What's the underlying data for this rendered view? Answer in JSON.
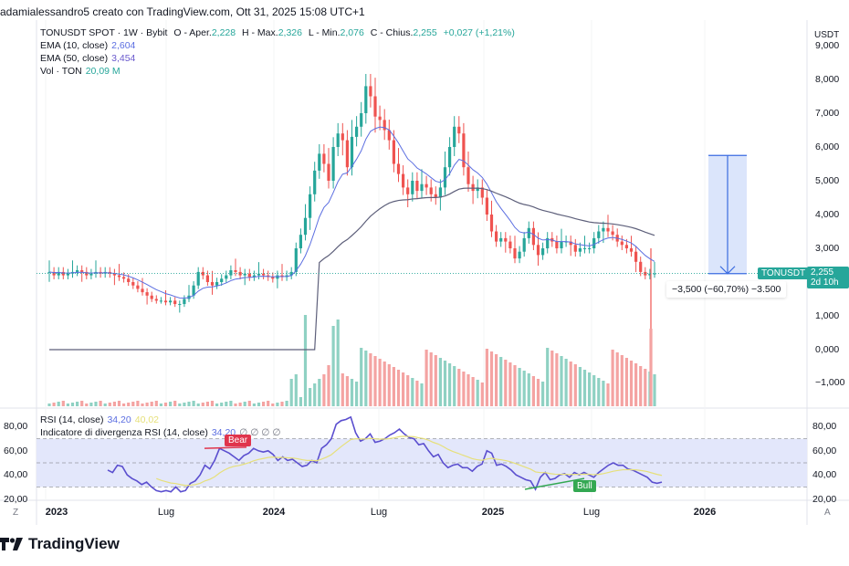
{
  "caption": "adamialessandro5 creato con TradingView.com, Ott 31, 2025 15:08 UTC+1",
  "legend": {
    "symbol_line": "TONUSDT SPOT · 1W · Bybit",
    "open_label": "O - Aper.",
    "open": "2,228",
    "high_label": "H - Max.",
    "high": "2,326",
    "low_label": "L - Min.",
    "low": "2,076",
    "close_label": "C - Chius.",
    "close": "2,255",
    "change": "+0,027 (+1,21%)",
    "ema10_label": "EMA (10, close)",
    "ema10": "2,604",
    "ema50_label": "EMA (50, close)",
    "ema50": "3,454",
    "vol_label": "Vol · TON",
    "vol": "20,09 M"
  },
  "rsi_legend": {
    "rsi_label": "RSI (14, close)",
    "rsi": "34,20",
    "rsi_ma": "40,02",
    "div_label": "Indicatore di divergenza RSI (14, close)",
    "div_value": "34,20",
    "div_extra": "∅ ∅ ∅ ∅"
  },
  "price_axis": {
    "currency": "USDT",
    "ticks": [
      "9,000",
      "8,000",
      "7,000",
      "6,000",
      "5,000",
      "4,000",
      "3,000",
      "1,000",
      "0,000",
      "−1,000"
    ]
  },
  "rsi_axis": {
    "ticks": [
      "80,00",
      "60,00",
      "40,00",
      "20,00"
    ]
  },
  "time_axis": {
    "labels": [
      {
        "text": "2023",
        "bold": true
      },
      {
        "text": "Lug",
        "bold": false
      },
      {
        "text": "2024",
        "bold": true
      },
      {
        "text": "Lug",
        "bold": false
      },
      {
        "text": "2025",
        "bold": true
      },
      {
        "text": "Lug",
        "bold": false
      },
      {
        "text": "2026",
        "bold": true
      }
    ],
    "left_button": "Z",
    "right_button": "A"
  },
  "price_badge": {
    "symbol": "TONUSDT",
    "price": "2,255",
    "countdown": "2d 10h"
  },
  "measure": {
    "text": "−3,500 (−60,70%) −3.500",
    "from": 5.75,
    "to": 2.25
  },
  "divergence": {
    "bear_label": "Bear",
    "bull_label": "Bull"
  },
  "colors": {
    "up": "#26a69a",
    "down": "#ef5350",
    "up_vol": "#8fd1c3",
    "down_vol": "#f4a3a2",
    "ema10": "#5b6ee1",
    "ema50": "#5d5f7a",
    "rsi": "#5b4fcf",
    "rsi_ma": "#e6e07a",
    "rsi_band": "#e3e7fb",
    "measure": "#3a6be0",
    "measure_fill": "#dbe5fb",
    "badge": "#26a69a",
    "bear": "#e0344c",
    "bull": "#33a852"
  },
  "brand": {
    "logo_text": "TradingView"
  },
  "chart_data": {
    "type": "candlestick",
    "title": "TONUSDT SPOT · 1W · Bybit",
    "xlabel": "",
    "ylabel": "USDT",
    "ylim": [
      -1.0,
      9.0
    ],
    "x_ticks": [
      "2023",
      "Lug",
      "2024",
      "Lug",
      "2025",
      "Lug",
      "2026"
    ],
    "close_approx": [
      2.3,
      2.2,
      2.3,
      2.2,
      2.25,
      2.3,
      2.35,
      2.3,
      2.2,
      2.25,
      2.3,
      2.25,
      2.3,
      2.25,
      2.2,
      2.15,
      2.1,
      2.0,
      1.9,
      1.8,
      1.7,
      1.6,
      1.5,
      1.45,
      1.45,
      1.4,
      1.45,
      1.35,
      1.35,
      1.5,
      1.6,
      1.9,
      2.3,
      2.2,
      2.0,
      1.9,
      2.0,
      2.1,
      2.2,
      2.35,
      2.3,
      2.2,
      2.25,
      2.15,
      2.2,
      2.25,
      2.2,
      2.15,
      2.1,
      2.2,
      2.15,
      2.2,
      2.3,
      3.0,
      3.4,
      3.9,
      4.6,
      5.3,
      5.8,
      5.5,
      5.0,
      6.0,
      6.4,
      6.2,
      5.4,
      6.3,
      6.6,
      7.0,
      7.8,
      7.5,
      6.9,
      6.8,
      6.5,
      6.2,
      5.5,
      5.2,
      4.8,
      4.6,
      5.0,
      4.7,
      4.9,
      4.8,
      4.6,
      4.5,
      4.8,
      5.4,
      6.0,
      6.6,
      6.4,
      5.4,
      4.9,
      4.7,
      4.8,
      4.5,
      4.0,
      3.5,
      3.2,
      3.3,
      3.2,
      3.0,
      2.7,
      2.9,
      3.3,
      3.6,
      3.1,
      2.8,
      3.0,
      3.3,
      3.2,
      3.0,
      3.2,
      3.2,
      3.1,
      2.9,
      3.0,
      3.0,
      3.0,
      3.3,
      3.5,
      3.6,
      3.5,
      3.4,
      3.2,
      3.1,
      3.0,
      2.9,
      2.6,
      2.3,
      2.2,
      2.25,
      2.255
    ],
    "series": [
      {
        "name": "EMA (10, close)",
        "last": 2.604
      },
      {
        "name": "EMA (50, close)",
        "last": 3.454
      },
      {
        "name": "Vol · TON",
        "last": "20,09 M"
      },
      {
        "name": "RSI (14, close)",
        "last": 34.2,
        "ma": 40.02,
        "bands": [
          30,
          50,
          70
        ]
      }
    ],
    "annotations": [
      "Bear divergence (2023 H2)",
      "Bull divergence (2025)",
      "Measure: −3,500 (−60,70%)"
    ]
  }
}
